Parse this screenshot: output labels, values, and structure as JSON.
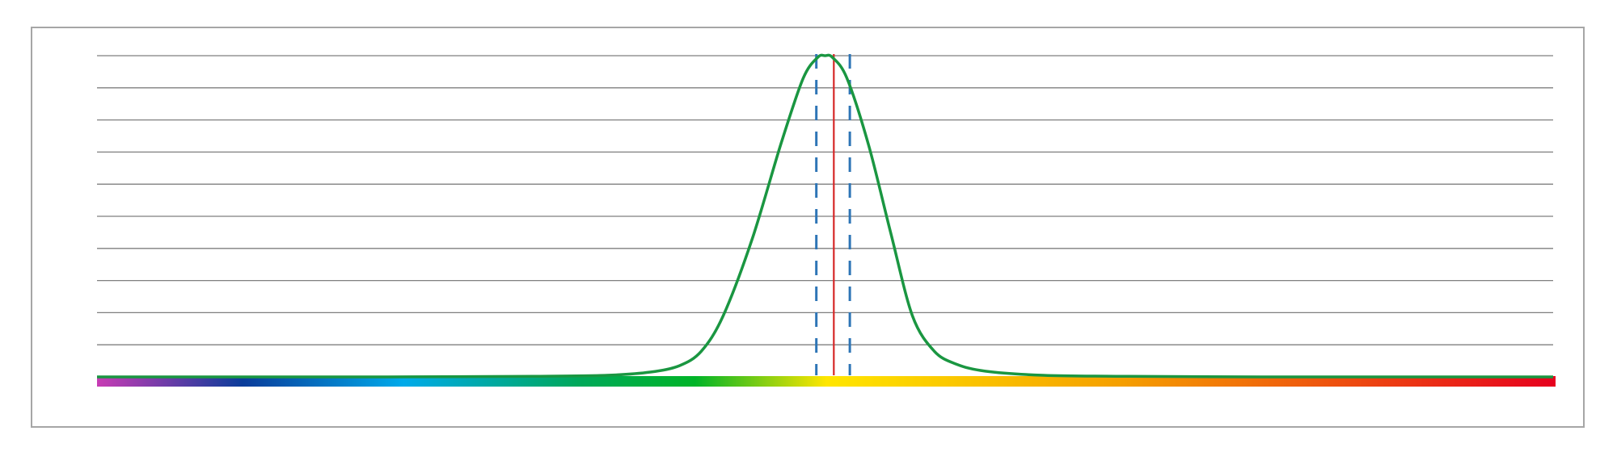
{
  "chart_data": {
    "type": "line",
    "title": "",
    "xlabel": "",
    "ylabel": "",
    "xlim": [
      0,
      100
    ],
    "ylim": [
      0,
      100
    ],
    "grid": true,
    "gridlines": [
      10,
      20,
      30,
      40,
      50,
      60,
      70,
      80,
      90,
      100
    ],
    "series": [
      {
        "x": [
          0,
          10,
          20,
          30,
          35,
          38,
          40,
          41.5,
          43,
          45,
          47,
          48.5,
          49.5,
          50,
          50.5,
          51.5,
          53,
          54.5,
          56,
          57.5,
          59,
          61,
          65,
          70,
          80,
          90,
          100
        ],
        "y": [
          0,
          0,
          0,
          0.2,
          0.5,
          1.5,
          3.5,
          8,
          19,
          43,
          73,
          93,
          99.5,
          100,
          99.5,
          93,
          72,
          45,
          19,
          8,
          4,
          1.8,
          0.5,
          0.2,
          0,
          0,
          0
        ]
      }
    ],
    "reference_lines": [
      {
        "x": 50.6,
        "style": "solid",
        "color": "#d62728"
      },
      {
        "x": 49.4,
        "style": "dashed",
        "color": "#2e75b6"
      },
      {
        "x": 51.7,
        "style": "dashed",
        "color": "#2e75b6"
      }
    ],
    "colors": {
      "curve": "#1a9641",
      "grid": "#7f7f7f",
      "frame": "#a6a6a6",
      "spectrum": [
        "#c83cb4",
        "#0a3c9a",
        "#00aaea",
        "#00a85a",
        "#00b428",
        "#ffe600",
        "#f5a000",
        "#e6001e"
      ]
    }
  }
}
